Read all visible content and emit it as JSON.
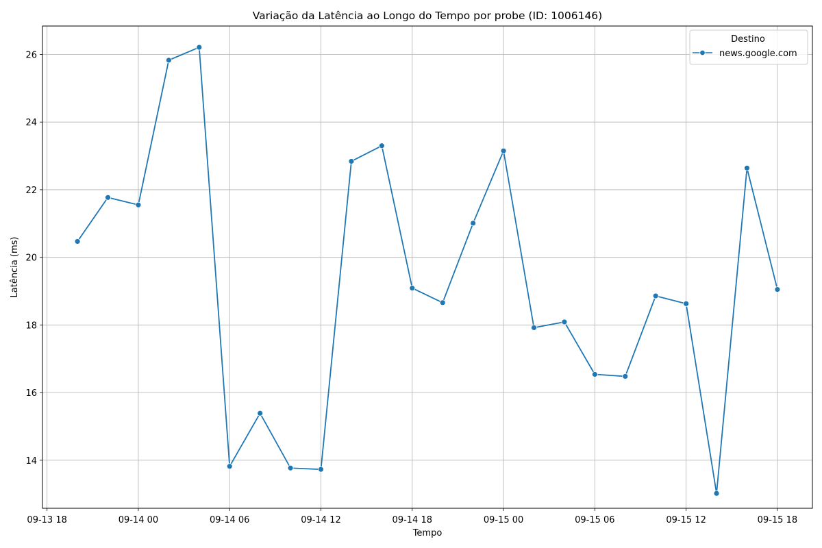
{
  "chart_data": {
    "type": "line",
    "title": "Variação da Latência ao Longo do Tempo por probe (ID: 1006146)",
    "xlabel": "Tempo",
    "ylabel": "Latência (ms)",
    "x_tick_labels": [
      "09-13 18",
      "09-14 00",
      "09-14 06",
      "09-14 12",
      "09-14 18",
      "09-15 00",
      "09-15 06",
      "09-15 12",
      "09-15 18"
    ],
    "y_ticks": [
      14,
      16,
      18,
      20,
      22,
      24,
      26
    ],
    "ylim": [
      12.58,
      26.84
    ],
    "grid": true,
    "legend": {
      "title": "Destino",
      "placement": "top-right"
    },
    "colors": {
      "series": "#1f77b4",
      "grid": "#b0b0b0"
    },
    "series": [
      {
        "name": "news.google.com",
        "x": [
          "09-13 20:00",
          "09-13 22:00",
          "09-14 00:00",
          "09-14 02:00",
          "09-14 04:00",
          "09-14 06:00",
          "09-14 08:00",
          "09-14 10:00",
          "09-14 12:00",
          "09-14 14:00",
          "09-14 16:00",
          "09-14 18:00",
          "09-14 20:00",
          "09-14 22:00",
          "09-15 00:00",
          "09-15 02:00",
          "09-15 04:00",
          "09-15 06:00",
          "09-15 08:00",
          "09-15 10:00",
          "09-15 12:00",
          "09-15 14:00",
          "09-15 16:00",
          "09-15 18:00"
        ],
        "values": [
          20.47,
          21.77,
          21.55,
          25.83,
          26.21,
          13.82,
          15.39,
          13.77,
          13.73,
          22.84,
          23.3,
          19.09,
          18.66,
          21.01,
          23.15,
          17.92,
          18.09,
          16.54,
          16.48,
          18.86,
          18.63,
          13.02,
          22.64,
          19.05
        ]
      }
    ]
  }
}
